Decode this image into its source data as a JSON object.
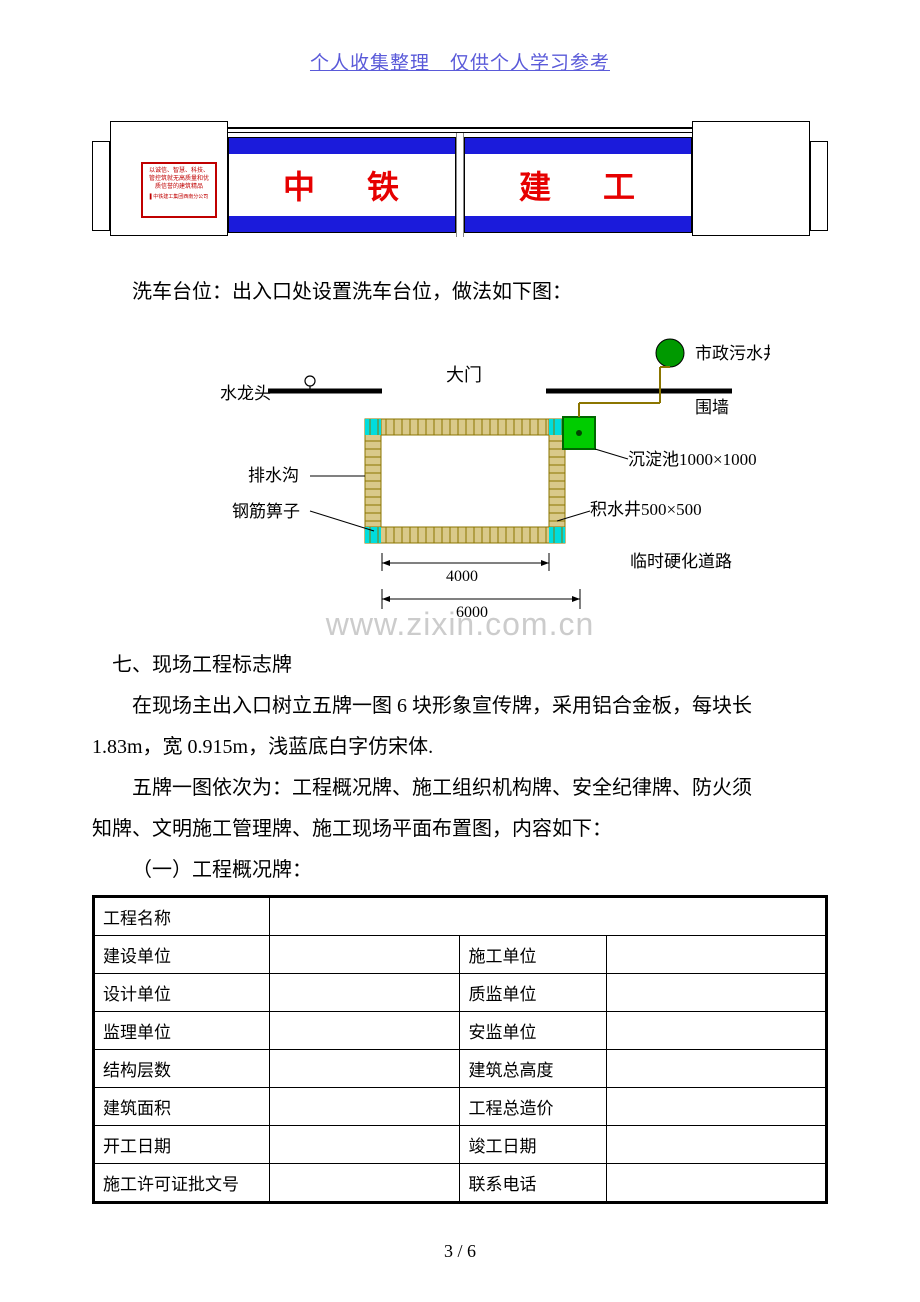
{
  "header": "个人收集整理　仅供个人学习参考",
  "gate": {
    "plaque_text": "以诚信、智慧、科技、管控筑就无高质量和优质信誉的建筑精品",
    "plaque_footer": "▌中铁建工集团西南分公司",
    "panel_left_text": "中 铁",
    "panel_right_text": "建 工",
    "stripe_color": "#1b1bdb",
    "text_color": "#e60000"
  },
  "wash_intro": "洗车台位：出入口处设置洗车台位，做法如下图：",
  "wash_diagram": {
    "labels": {
      "gate": "大门",
      "faucet": "水龙头",
      "wall": "围墙",
      "drain": "排水沟",
      "grate": "钢筋箅子",
      "sewage": "市政污水井",
      "settling": "沉淀池1000×1000",
      "catchpit": "积水井500×500",
      "temproad": "临时硬化道路",
      "dim_4000": "4000",
      "dim_6000": "6000"
    },
    "colors": {
      "pipe": "#8b7500",
      "tank": "#00a000",
      "hatch": "#c4a860",
      "cyan": "#00dddd"
    }
  },
  "watermark": "www.zixin.com.cn",
  "section7_title": "七、现场工程标志牌",
  "section7_p1": "在现场主出入口树立五牌一图 6 块形象宣传牌，采用铝合金板，每块长 1.83m，宽 0.915m，浅蓝底白字仿宋体.",
  "section7_p1_cont": "1.83m，宽 0.915m，浅蓝底白字仿宋体.",
  "section7_p2": "五牌一图依次为：工程概况牌、施工组织机构牌、安全纪律牌、防火须知牌、文明施工管理牌、施工现场平面布置图，内容如下：",
  "section7_sub1": "（一）工程概况牌：",
  "table": {
    "rows": [
      [
        "工程名称",
        "",
        "",
        ""
      ],
      [
        "建设单位",
        "",
        "施工单位",
        ""
      ],
      [
        "设计单位",
        "",
        "质监单位",
        ""
      ],
      [
        "监理单位",
        "",
        "安监单位",
        ""
      ],
      [
        "结构层数",
        "",
        "建筑总高度",
        ""
      ],
      [
        "建筑面积",
        "",
        "工程总造价",
        ""
      ],
      [
        "开工日期",
        "",
        "竣工日期",
        ""
      ],
      [
        "施工许可证批文号",
        "",
        "联系电话",
        ""
      ]
    ]
  },
  "footer": {
    "page": "3 / 6"
  }
}
